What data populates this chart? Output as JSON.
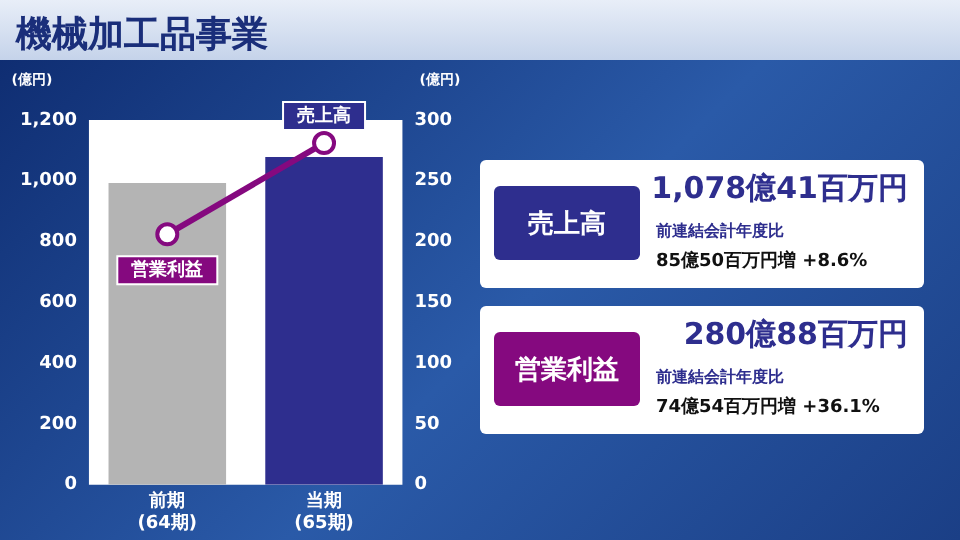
{
  "chart_data": {
    "type": "bar",
    "title": "機械加工品事業",
    "ylabel": "(億円)",
    "y2label": "(億円)",
    "categories": [
      "前期\n(64期)",
      "当期\n(65期)"
    ],
    "series": [
      {
        "name": "売上高",
        "colors": [
          "#b4b4b4",
          "#2e2e8e"
        ],
        "values": [
          993,
          1078
        ]
      },
      {
        "name": "営業利益",
        "type": "line",
        "axis": "y2",
        "color": "#85097f",
        "marker": "circle",
        "values": [
          206,
          281
        ]
      }
    ],
    "ylim": [
      0,
      1200
    ],
    "yticks": [
      {
        "value": 0,
        "label": "0"
      },
      {
        "value": 200,
        "label": "200"
      },
      {
        "value": 400,
        "label": "400"
      },
      {
        "value": 600,
        "label": "600"
      },
      {
        "value": 800,
        "label": "800"
      },
      {
        "value": 1000,
        "label": "1,000"
      },
      {
        "value": 1200,
        "label": "1,200"
      }
    ],
    "y2lim": [
      0,
      300
    ],
    "y2ticks": [
      0,
      50,
      100,
      150,
      200,
      250,
      300
    ],
    "grid": false,
    "legend": false,
    "annotations": [
      "売上高",
      "1,078億41百万円",
      "前連結会計年度比",
      "85億50百万円増 +8.6%",
      "営業利益",
      "280億88百万円",
      "前連結会計年度比",
      "74億54百万円増 +36.1%"
    ]
  }
}
